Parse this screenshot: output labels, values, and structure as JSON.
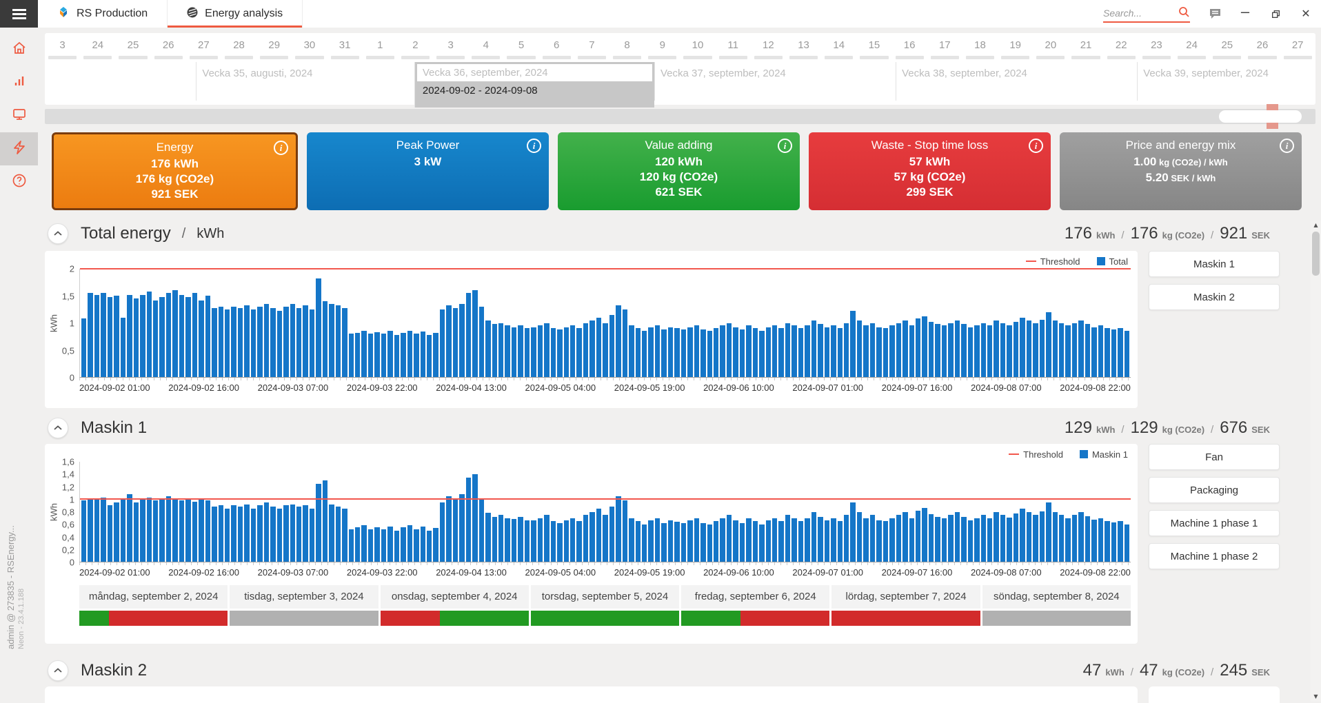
{
  "window": {
    "tabs": [
      {
        "label": "RS Production"
      },
      {
        "label": "Energy analysis",
        "active": true
      }
    ],
    "search_placeholder": "Search..."
  },
  "icons": {
    "info": "i",
    "minimize": "–",
    "close": "✕",
    "gear": "⚙",
    "scroll_up": "▲",
    "scroll_down": "▼"
  },
  "labels": {
    "slash": "/"
  },
  "sidebar": {
    "items": [
      {
        "icon": "home"
      },
      {
        "icon": "bar-chart"
      },
      {
        "icon": "monitor"
      },
      {
        "icon": "energy",
        "active": true
      },
      {
        "icon": "help"
      }
    ]
  },
  "footer": {
    "line1": "admin @ 273835 - RSEnergy...",
    "line2": "Neon - 23.4.1.188"
  },
  "timeline": {
    "dates": [
      "3",
      "24",
      "25",
      "26",
      "27",
      "28",
      "29",
      "30",
      "31",
      "1",
      "2",
      "3",
      "4",
      "5",
      "6",
      "7",
      "8",
      "9",
      "10",
      "11",
      "12",
      "13",
      "14",
      "15",
      "16",
      "17",
      "18",
      "19",
      "20",
      "21",
      "22",
      "23",
      "24",
      "25",
      "26",
      "27"
    ],
    "weeks": [
      {
        "label": "Vecka 35, augusti, 2024"
      },
      {
        "label": "Vecka 36, september, 2024",
        "selected": true,
        "range": "2024-09-02 - 2024-09-08"
      },
      {
        "label": "Vecka 37, september, 2024"
      },
      {
        "label": "Vecka 38, september, 2024"
      },
      {
        "label": "Vecka 39, september, 2024"
      }
    ]
  },
  "cards": [
    {
      "title": "Energy",
      "selected": true,
      "color_top": "#f79621",
      "color_bottom": "#ec7c10",
      "border_color": "#7a3c0e",
      "lines": [
        "176 kWh",
        "176 kg (CO2e)",
        "921 SEK"
      ]
    },
    {
      "title": "Peak Power",
      "color_top": "#1787cd",
      "color_bottom": "#0d6db3",
      "lines": [
        "3 kW"
      ]
    },
    {
      "title": "Value adding",
      "color_top": "#43b14b",
      "color_bottom": "#199c2f",
      "lines": [
        "120 kWh",
        "120 kg (CO2e)",
        "621 SEK"
      ]
    },
    {
      "title": "Waste - Stop time loss",
      "color_top": "#e73c3e",
      "color_bottom": "#d52e33",
      "lines": [
        "57 kWh",
        "57 kg (CO2e)",
        "299 SEK"
      ]
    },
    {
      "title": "Price and energy mix",
      "color_top": "#a0a0a0",
      "color_bottom": "#868686",
      "lines": [
        {
          "value": "1.00",
          "unit": "kg (CO2e) / kWh"
        },
        {
          "value": "5.20",
          "unit": "SEK  / kWh"
        }
      ]
    }
  ],
  "sections": [
    {
      "title": "Total energy",
      "unit": "kWh",
      "stats": [
        {
          "value": "176",
          "unit": "kWh"
        },
        {
          "value": "176",
          "unit": "kg (CO2e)"
        },
        {
          "value": "921",
          "unit": "SEK"
        }
      ],
      "legend": [
        {
          "marker": "line",
          "label": "Threshold",
          "color": "#f2574d"
        },
        {
          "marker": "square",
          "label": "Total",
          "color": "#1576c8"
        }
      ],
      "side_buttons": [
        "Maskin 1",
        "Maskin 2"
      ]
    },
    {
      "title": "Maskin 1",
      "unit": "",
      "stats": [
        {
          "value": "129",
          "unit": "kWh"
        },
        {
          "value": "129",
          "unit": "kg (CO2e)"
        },
        {
          "value": "676",
          "unit": "SEK"
        }
      ],
      "legend": [
        {
          "marker": "line",
          "label": "Threshold",
          "color": "#f2574d"
        },
        {
          "marker": "square",
          "label": "Maskin 1",
          "color": "#1576c8"
        }
      ],
      "side_buttons": [
        "Fan",
        "Packaging",
        "Machine 1 phase 1",
        "Machine 1 phase 2"
      ]
    },
    {
      "title": "Maskin 2",
      "unit": "",
      "stats": [
        {
          "value": "47",
          "unit": "kWh"
        },
        {
          "value": "47",
          "unit": "kg (CO2e)"
        },
        {
          "value": "245",
          "unit": "SEK"
        }
      ],
      "legend": [],
      "side_buttons": []
    }
  ],
  "chart_data": [
    {
      "type": "bar",
      "title": "Total energy",
      "ylabel": "kWh",
      "ylim": [
        0,
        2
      ],
      "yticks": [
        "2",
        "1,5",
        "1",
        "0,5",
        "0"
      ],
      "threshold": 2,
      "grid": false,
      "legend_position": "top-right",
      "x_labels": [
        "2024-09-02 01:00",
        "2024-09-02 16:00",
        "2024-09-03 07:00",
        "2024-09-03 22:00",
        "2024-09-04 13:00",
        "2024-09-05 04:00",
        "2024-09-05 19:00",
        "2024-09-06 10:00",
        "2024-09-07 01:00",
        "2024-09-07 16:00",
        "2024-09-08 07:00",
        "2024-09-08 22:00"
      ],
      "series": [
        {
          "name": "Total",
          "color": "#1576c8",
          "values": [
            1.08,
            1.55,
            1.52,
            1.55,
            1.48,
            1.5,
            1.1,
            1.52,
            1.45,
            1.52,
            1.58,
            1.42,
            1.48,
            1.55,
            1.6,
            1.52,
            1.48,
            1.55,
            1.42,
            1.5,
            1.28,
            1.3,
            1.25,
            1.3,
            1.28,
            1.32,
            1.25,
            1.3,
            1.35,
            1.28,
            1.22,
            1.3,
            1.35,
            1.28,
            1.32,
            1.25,
            1.82,
            1.4,
            1.35,
            1.32,
            1.28,
            0.8,
            0.82,
            0.85,
            0.8,
            0.83,
            0.8,
            0.85,
            0.78,
            0.82,
            0.85,
            0.8,
            0.84,
            0.78,
            0.82,
            1.25,
            1.32,
            1.28,
            1.35,
            1.55,
            1.6,
            1.3,
            1.05,
            0.98,
            1.0,
            0.95,
            0.92,
            0.96,
            0.9,
            0.92,
            0.95,
            1.0,
            0.9,
            0.88,
            0.92,
            0.95,
            0.9,
            1.0,
            1.05,
            1.1,
            1.0,
            1.15,
            1.32,
            1.25,
            0.95,
            0.9,
            0.85,
            0.92,
            0.95,
            0.88,
            0.92,
            0.9,
            0.88,
            0.92,
            0.95,
            0.88,
            0.85,
            0.9,
            0.96,
            1.0,
            0.92,
            0.88,
            0.95,
            0.9,
            0.85,
            0.92,
            0.95,
            0.9,
            1.0,
            0.95,
            0.9,
            0.96,
            1.05,
            0.98,
            0.92,
            0.95,
            0.9,
            1.0,
            1.22,
            1.05,
            0.95,
            1.0,
            0.92,
            0.9,
            0.96,
            1.0,
            1.05,
            0.95,
            1.08,
            1.12,
            1.02,
            0.98,
            0.95,
            1.0,
            1.05,
            0.98,
            0.92,
            0.95,
            1.0,
            0.95,
            1.05,
            1.0,
            0.96,
            1.02,
            1.1,
            1.05,
            1.0,
            1.06,
            1.2,
            1.05,
            1.0,
            0.95,
            1.0,
            1.05,
            0.98,
            0.92,
            0.95,
            0.9,
            0.88,
            0.9,
            0.86
          ]
        }
      ]
    },
    {
      "type": "bar",
      "title": "Maskin 1",
      "ylabel": "kWh",
      "ylim": [
        0,
        1.6
      ],
      "yticks": [
        "1,6",
        "1,4",
        "1,2",
        "1",
        "0,8",
        "0,6",
        "0,4",
        "0,2",
        "0"
      ],
      "threshold": 1,
      "grid": false,
      "legend_position": "top-right",
      "x_labels": [
        "2024-09-02 01:00",
        "2024-09-02 16:00",
        "2024-09-03 07:00",
        "2024-09-03 22:00",
        "2024-09-04 13:00",
        "2024-09-05 04:00",
        "2024-09-05 19:00",
        "2024-09-06 10:00",
        "2024-09-07 01:00",
        "2024-09-07 16:00",
        "2024-09-08 07:00",
        "2024-09-08 22:00"
      ],
      "series": [
        {
          "name": "Maskin 1",
          "color": "#1576c8",
          "values": [
            0.98,
            1.02,
            1.0,
            1.03,
            0.91,
            0.95,
            1.01,
            1.08,
            0.95,
            1.0,
            1.03,
            0.98,
            1.0,
            1.05,
            1.02,
            0.98,
            1.0,
            0.96,
            1.02,
            0.98,
            0.88,
            0.9,
            0.85,
            0.9,
            0.88,
            0.92,
            0.85,
            0.9,
            0.95,
            0.88,
            0.85,
            0.9,
            0.92,
            0.88,
            0.9,
            0.85,
            1.25,
            1.3,
            0.92,
            0.88,
            0.85,
            0.52,
            0.55,
            0.58,
            0.52,
            0.55,
            0.52,
            0.56,
            0.5,
            0.55,
            0.58,
            0.52,
            0.56,
            0.5,
            0.54,
            0.95,
            1.05,
            1.0,
            1.08,
            1.35,
            1.4,
            1.02,
            0.78,
            0.72,
            0.75,
            0.7,
            0.68,
            0.72,
            0.66,
            0.66,
            0.7,
            0.75,
            0.65,
            0.62,
            0.66,
            0.7,
            0.65,
            0.75,
            0.8,
            0.85,
            0.75,
            0.88,
            1.05,
            0.98,
            0.7,
            0.65,
            0.6,
            0.66,
            0.7,
            0.62,
            0.66,
            0.64,
            0.62,
            0.66,
            0.7,
            0.62,
            0.6,
            0.65,
            0.7,
            0.75,
            0.66,
            0.62,
            0.7,
            0.65,
            0.6,
            0.66,
            0.7,
            0.65,
            0.75,
            0.7,
            0.65,
            0.7,
            0.8,
            0.72,
            0.66,
            0.7,
            0.65,
            0.75,
            0.95,
            0.8,
            0.7,
            0.75,
            0.66,
            0.65,
            0.7,
            0.75,
            0.8,
            0.7,
            0.82,
            0.86,
            0.76,
            0.72,
            0.7,
            0.75,
            0.8,
            0.72,
            0.66,
            0.7,
            0.75,
            0.7,
            0.8,
            0.75,
            0.71,
            0.77,
            0.85,
            0.8,
            0.75,
            0.81,
            0.95,
            0.8,
            0.75,
            0.7,
            0.75,
            0.8,
            0.73,
            0.67,
            0.7,
            0.65,
            0.63,
            0.65,
            0.6
          ]
        }
      ]
    }
  ],
  "day_strip": {
    "days": [
      {
        "label": "måndag, september 2, 2024",
        "segments": [
          {
            "color": "#229a22",
            "pct": 20
          },
          {
            "color": "#d22b2b",
            "pct": 80
          }
        ]
      },
      {
        "label": "tisdag, september 3, 2024",
        "segments": [
          {
            "color": "#b1b1b1",
            "pct": 100
          }
        ]
      },
      {
        "label": "onsdag, september 4, 2024",
        "segments": [
          {
            "color": "#d22b2b",
            "pct": 40
          },
          {
            "color": "#229a22",
            "pct": 60
          }
        ]
      },
      {
        "label": "torsdag, september 5, 2024",
        "segments": [
          {
            "color": "#229a22",
            "pct": 100
          }
        ]
      },
      {
        "label": "fredag, september 6, 2024",
        "segments": [
          {
            "color": "#229a22",
            "pct": 40
          },
          {
            "color": "#d22b2b",
            "pct": 60
          }
        ]
      },
      {
        "label": "lördag, september 7, 2024",
        "segments": [
          {
            "color": "#d22b2b",
            "pct": 100
          }
        ]
      },
      {
        "label": "söndag, september 8, 2024",
        "segments": [
          {
            "color": "#b1b1b1",
            "pct": 100
          }
        ]
      }
    ]
  },
  "colors": {
    "accent": "#ee5a40",
    "bar": "#1576c8",
    "threshold": "#f2574d",
    "selected_week_bg": "#c7c7c7",
    "ok_green": "#229a22",
    "stop_red": "#d22b2b",
    "idle_gray": "#b1b1b1"
  }
}
